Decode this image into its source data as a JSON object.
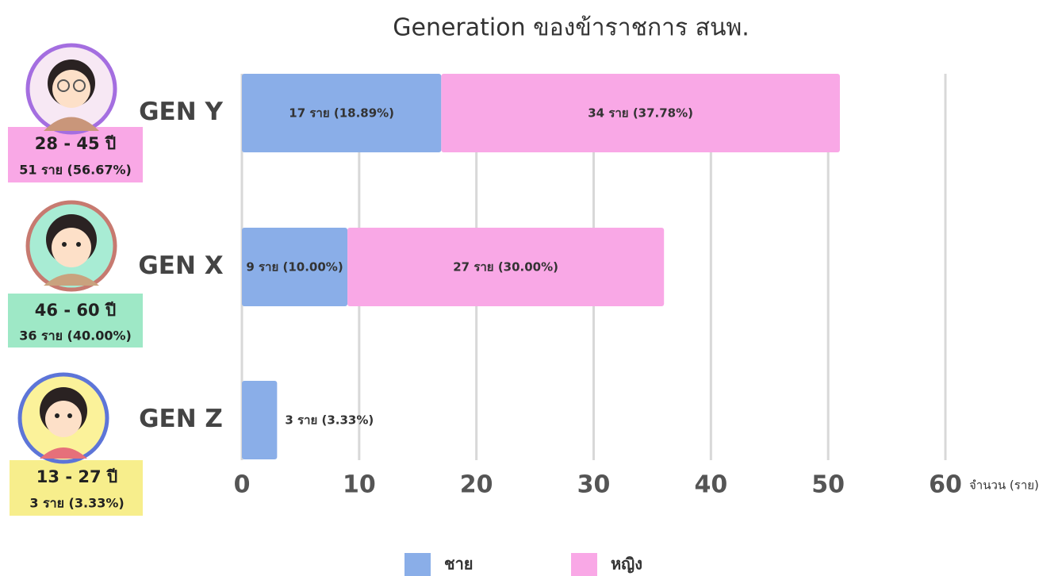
{
  "chart_data": {
    "type": "bar",
    "orientation": "horizontal",
    "stacked": true,
    "title": "Generation ของข้าราชการ สนพ.",
    "categories": [
      "GEN Y",
      "GEN X",
      "GEN Z"
    ],
    "series": [
      {
        "name": "ชาย",
        "color": "#8aaee8",
        "values": [
          17,
          9,
          3
        ],
        "value_labels": [
          "17 ราย (18.89%)",
          "9 ราย (10.00%)",
          "3 ราย (3.33%)"
        ]
      },
      {
        "name": "หญิง",
        "color": "#f9a8e6",
        "values": [
          34,
          27,
          null
        ],
        "value_labels": [
          "34 ราย (37.78%)",
          "27 ราย (30.00%)",
          null
        ]
      }
    ],
    "xlim": [
      0,
      60
    ],
    "xticks": [
      0,
      10,
      20,
      30,
      40,
      50,
      60
    ],
    "grid": true,
    "x_label": "จำนวน (ราย)",
    "side_labels": [
      {
        "age": "28 - 45 ปี",
        "total": "51 ราย (56.67%)"
      },
      {
        "age": "46 - 60 ปี",
        "total": "36 ราย (40.00%)"
      },
      {
        "age": "13 - 27 ปี",
        "total": "3 ราย (3.33%)"
      }
    ]
  }
}
